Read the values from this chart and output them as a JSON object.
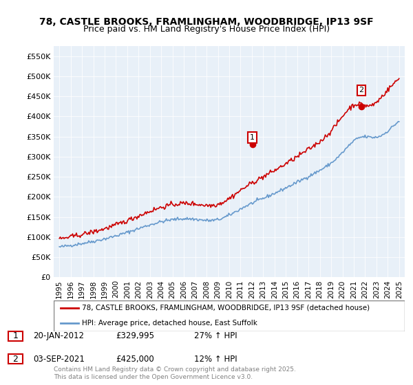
{
  "title_line1": "78, CASTLE BROOKS, FRAMLINGHAM, WOODBRIDGE, IP13 9SF",
  "title_line2": "Price paid vs. HM Land Registry's House Price Index (HPI)",
  "legend_line1": "78, CASTLE BROOKS, FRAMLINGHAM, WOODBRIDGE, IP13 9SF (detached house)",
  "legend_line2": "HPI: Average price, detached house, East Suffolk",
  "footnote": "Contains HM Land Registry data © Crown copyright and database right 2025.\nThis data is licensed under the Open Government Licence v3.0.",
  "annotation1_label": "1",
  "annotation1_date": "20-JAN-2012",
  "annotation1_price": "£329,995",
  "annotation1_hpi": "27% ↑ HPI",
  "annotation2_label": "2",
  "annotation2_date": "03-SEP-2021",
  "annotation2_price": "£425,000",
  "annotation2_hpi": "12% ↑ HPI",
  "red_color": "#cc0000",
  "blue_color": "#6699cc",
  "ylim_min": 0,
  "ylim_max": 575000,
  "yticks": [
    0,
    50000,
    100000,
    150000,
    200000,
    250000,
    300000,
    350000,
    400000,
    450000,
    500000,
    550000
  ],
  "ytick_labels": [
    "£0",
    "£50K",
    "£100K",
    "£150K",
    "£200K",
    "£250K",
    "£300K",
    "£350K",
    "£400K",
    "£450K",
    "£500K",
    "£550K"
  ],
  "xlim_min": 1994.5,
  "xlim_max": 2025.5,
  "xticks": [
    1995,
    1996,
    1997,
    1998,
    1999,
    2000,
    2001,
    2002,
    2003,
    2004,
    2005,
    2006,
    2007,
    2008,
    2009,
    2010,
    2011,
    2012,
    2013,
    2014,
    2015,
    2016,
    2017,
    2018,
    2019,
    2020,
    2021,
    2022,
    2023,
    2024,
    2025
  ]
}
